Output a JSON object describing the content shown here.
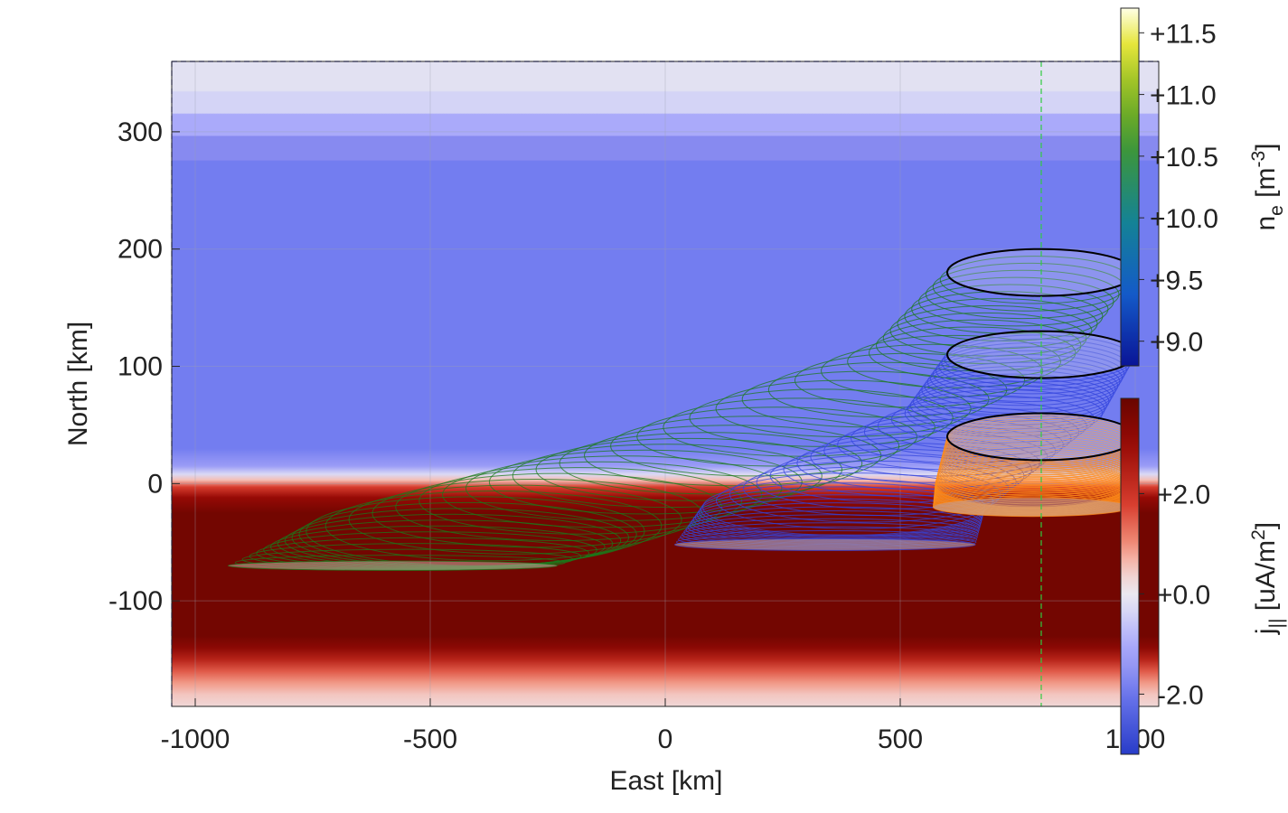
{
  "chart_data": {
    "type": "heatmap",
    "title": "",
    "xlabel": "East [km]",
    "ylabel": "North [km]",
    "xlim": [
      -1050,
      1050
    ],
    "ylim": [
      -190,
      360
    ],
    "grid": true,
    "x_ticks": [
      -1000,
      -500,
      0,
      500,
      1000
    ],
    "x_tick_labels": [
      "-1000",
      "-500",
      "0",
      "500",
      "1000"
    ],
    "y_ticks": [
      300,
      200,
      100,
      0,
      -100
    ],
    "y_tick_labels": [
      "300",
      "200",
      "100",
      "0",
      "-100"
    ],
    "background_field": {
      "name": "j||",
      "colorbar_label": "j|| [uA/m^2]",
      "colorbar_ticks": [
        "+2.0",
        "+0.0",
        "-2.0"
      ],
      "colorbar_tick_values": [
        2.0,
        0.0,
        -2.0
      ],
      "colorbar_range": [
        -3.2,
        3.9
      ],
      "profile_vs_north": [
        {
          "north": 360,
          "value": -0.15
        },
        {
          "north": 335,
          "value": -0.15
        },
        {
          "north": 334,
          "value": -0.4
        },
        {
          "north": 316,
          "value": -0.4
        },
        {
          "north": 315,
          "value": -1.0
        },
        {
          "north": 297,
          "value": -1.0
        },
        {
          "north": 296,
          "value": -1.7
        },
        {
          "north": 276,
          "value": -1.7
        },
        {
          "north": 275,
          "value": -1.85
        },
        {
          "north": 30,
          "value": -1.85
        },
        {
          "north": 15,
          "value": -1.3
        },
        {
          "north": 8,
          "value": -0.3
        },
        {
          "north": 3,
          "value": 0.6
        },
        {
          "north": -3,
          "value": 1.8
        },
        {
          "north": -12,
          "value": 3.0
        },
        {
          "north": -25,
          "value": 3.7
        },
        {
          "north": -130,
          "value": 3.7
        },
        {
          "north": -140,
          "value": 3.2
        },
        {
          "north": -150,
          "value": 2.4
        },
        {
          "north": -160,
          "value": 1.5
        },
        {
          "north": -170,
          "value": 0.9
        },
        {
          "north": -180,
          "value": 0.5
        },
        {
          "north": -190,
          "value": 0.3
        }
      ]
    },
    "density_field": {
      "name": "n_e",
      "colorbar_label": "n_e [m^-3]",
      "colorbar_ticks": [
        "+11.5",
        "+11.0",
        "+10.5",
        "+10.0",
        "+9.5",
        "+9.0"
      ],
      "colorbar_tick_values": [
        11.5,
        11.0,
        10.5,
        10.0,
        9.5,
        9.0
      ],
      "colorbar_range": [
        8.8,
        11.7
      ]
    },
    "reference_lines": [
      {
        "orientation": "vertical",
        "x": 800,
        "style": "dashed",
        "color": "#2ecc40"
      },
      {
        "orientation": "vertical",
        "x": -1050,
        "style": "dashed",
        "color": "#1a1aa8"
      },
      {
        "orientation": "horizontal",
        "y": 360,
        "style": "dashed",
        "color": "#1a1aa8"
      }
    ],
    "series": [
      {
        "color": "#1b7a1b",
        "rings": [
          {
            "east": 800,
            "north": 180,
            "rx": 200,
            "ry": 20
          },
          {
            "east": 650,
            "north": 110,
            "rx": 220,
            "ry": 22
          },
          {
            "east": 120,
            "north": 20,
            "rx": 320,
            "ry": 26
          },
          {
            "east": -400,
            "north": -40,
            "rx": 360,
            "ry": 30
          },
          {
            "east": -580,
            "north": -70,
            "rx": 350,
            "ry": 4
          }
        ]
      },
      {
        "color": "#3344dd",
        "rings": [
          {
            "east": 800,
            "north": 110,
            "rx": 200,
            "ry": 20
          },
          {
            "east": 720,
            "north": 60,
            "rx": 210,
            "ry": 20
          },
          {
            "east": 380,
            "north": -20,
            "rx": 300,
            "ry": 24
          },
          {
            "east": 340,
            "north": -52,
            "rx": 320,
            "ry": 5
          }
        ]
      },
      {
        "color": "#ff8c1a",
        "rings": [
          {
            "east": 800,
            "north": 40,
            "rx": 200,
            "ry": 20
          },
          {
            "east": 780,
            "north": 0,
            "rx": 205,
            "ry": 20
          },
          {
            "east": 780,
            "north": -20,
            "rx": 210,
            "ry": 8
          }
        ]
      }
    ],
    "black_rings": [
      {
        "east": 800,
        "north": 180,
        "rx": 200,
        "ry": 20
      },
      {
        "east": 800,
        "north": 110,
        "rx": 200,
        "ry": 20
      },
      {
        "east": 800,
        "north": 40,
        "rx": 200,
        "ry": 20
      }
    ]
  }
}
